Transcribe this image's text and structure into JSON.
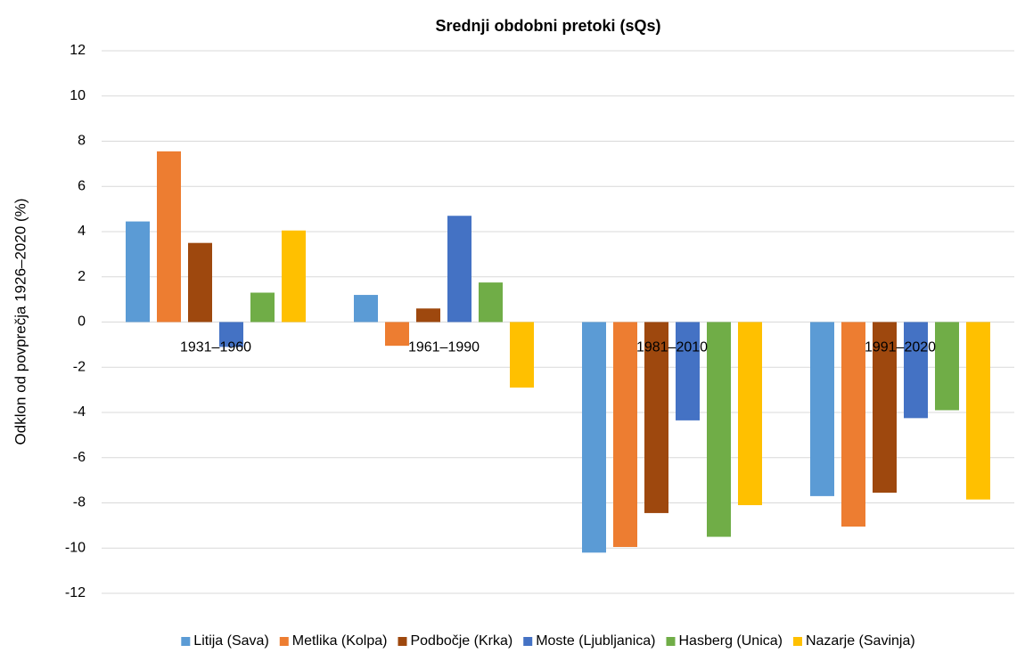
{
  "chart_data": {
    "type": "bar",
    "title": "Srednji obdobni pretoki (sQs)",
    "ylabel": "Odklon od povprečja 1926–2020 (%)",
    "categories": [
      "1931–1960",
      "1961–1990",
      "1981–2010",
      "1991–2020"
    ],
    "series": [
      {
        "name": "Litija (Sava)",
        "color": "#5b9bd5",
        "values": [
          4.45,
          1.2,
          -10.2,
          -7.7
        ]
      },
      {
        "name": "Metlika (Kolpa)",
        "color": "#ed7d31",
        "values": [
          7.55,
          -1.05,
          -9.95,
          -9.05
        ]
      },
      {
        "name": "Podbočje (Krka)",
        "color": "#9e480e",
        "values": [
          3.5,
          0.6,
          -8.45,
          -7.55
        ]
      },
      {
        "name": "Moste (Ljubljanica)",
        "color": "#4472c4",
        "values": [
          -1.1,
          4.7,
          -4.35,
          -4.25
        ]
      },
      {
        "name": "Hasberg (Unica)",
        "color": "#70ad47",
        "values": [
          1.3,
          1.75,
          -9.5,
          -3.9
        ]
      },
      {
        "name": "Nazarje (Savinja)",
        "color": "#ffc000",
        "values": [
          4.05,
          -2.9,
          -8.1,
          -7.85
        ]
      }
    ],
    "ylim": [
      -12,
      12
    ],
    "yticks": [
      -12,
      -10,
      -8,
      -6,
      -4,
      -2,
      0,
      2,
      4,
      6,
      8,
      10,
      12
    ],
    "grid": true,
    "legend": "bottom"
  }
}
